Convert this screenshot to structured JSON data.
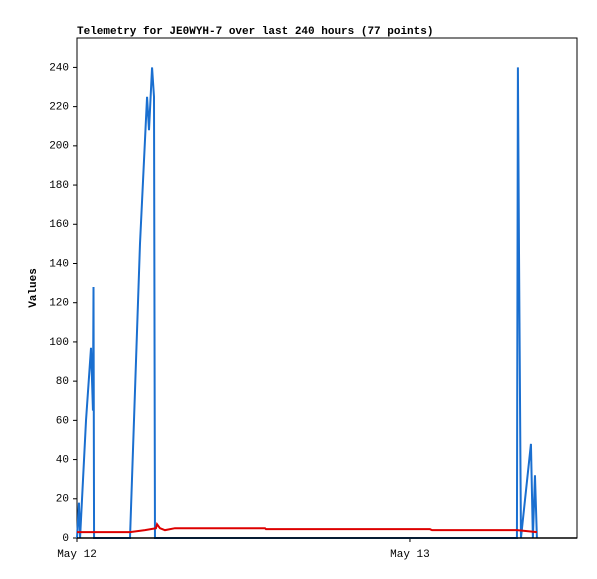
{
  "chart_data": {
    "type": "line",
    "title": "Telemetry for JE0WYH-7 over last 240 hours (77 points)",
    "y_label": "Values",
    "xlim": [
      0,
      36.04
    ],
    "ylim": [
      0,
      255
    ],
    "xticks": [
      {
        "value": 0,
        "label": "May 12"
      },
      {
        "value": 24,
        "label": "May 13"
      }
    ],
    "yticks": [
      0,
      20,
      40,
      60,
      80,
      100,
      120,
      140,
      160,
      180,
      200,
      220,
      240
    ],
    "grid": false,
    "series": [
      {
        "color": "#1a6fd0",
        "x": [
          0,
          0.14,
          0.22,
          0.65,
          1.01,
          1.15,
          1.19,
          1.23,
          3.82,
          4.54,
          5.05,
          5.19,
          5.41,
          5.55,
          5.62,
          31.71,
          31.78,
          31.86,
          32.0,
          32.72,
          32.86,
          33.01,
          33.15
        ],
        "values": [
          0,
          18,
          0,
          60,
          97,
          65,
          128,
          0,
          0,
          150,
          225,
          208,
          240,
          225,
          0,
          0,
          240,
          145,
          0,
          48,
          0,
          32,
          0
        ]
      },
      {
        "color": "#dd0000",
        "x": [
          0,
          3.82,
          4.9,
          5.69,
          5.77,
          5.98,
          6.34,
          7.06,
          13.55,
          13.62,
          25.44,
          25.59,
          31.71,
          33.15
        ],
        "values": [
          3,
          3,
          4,
          5,
          7,
          5,
          4,
          5,
          5,
          4.5,
          4.5,
          4,
          4,
          3
        ]
      }
    ]
  }
}
